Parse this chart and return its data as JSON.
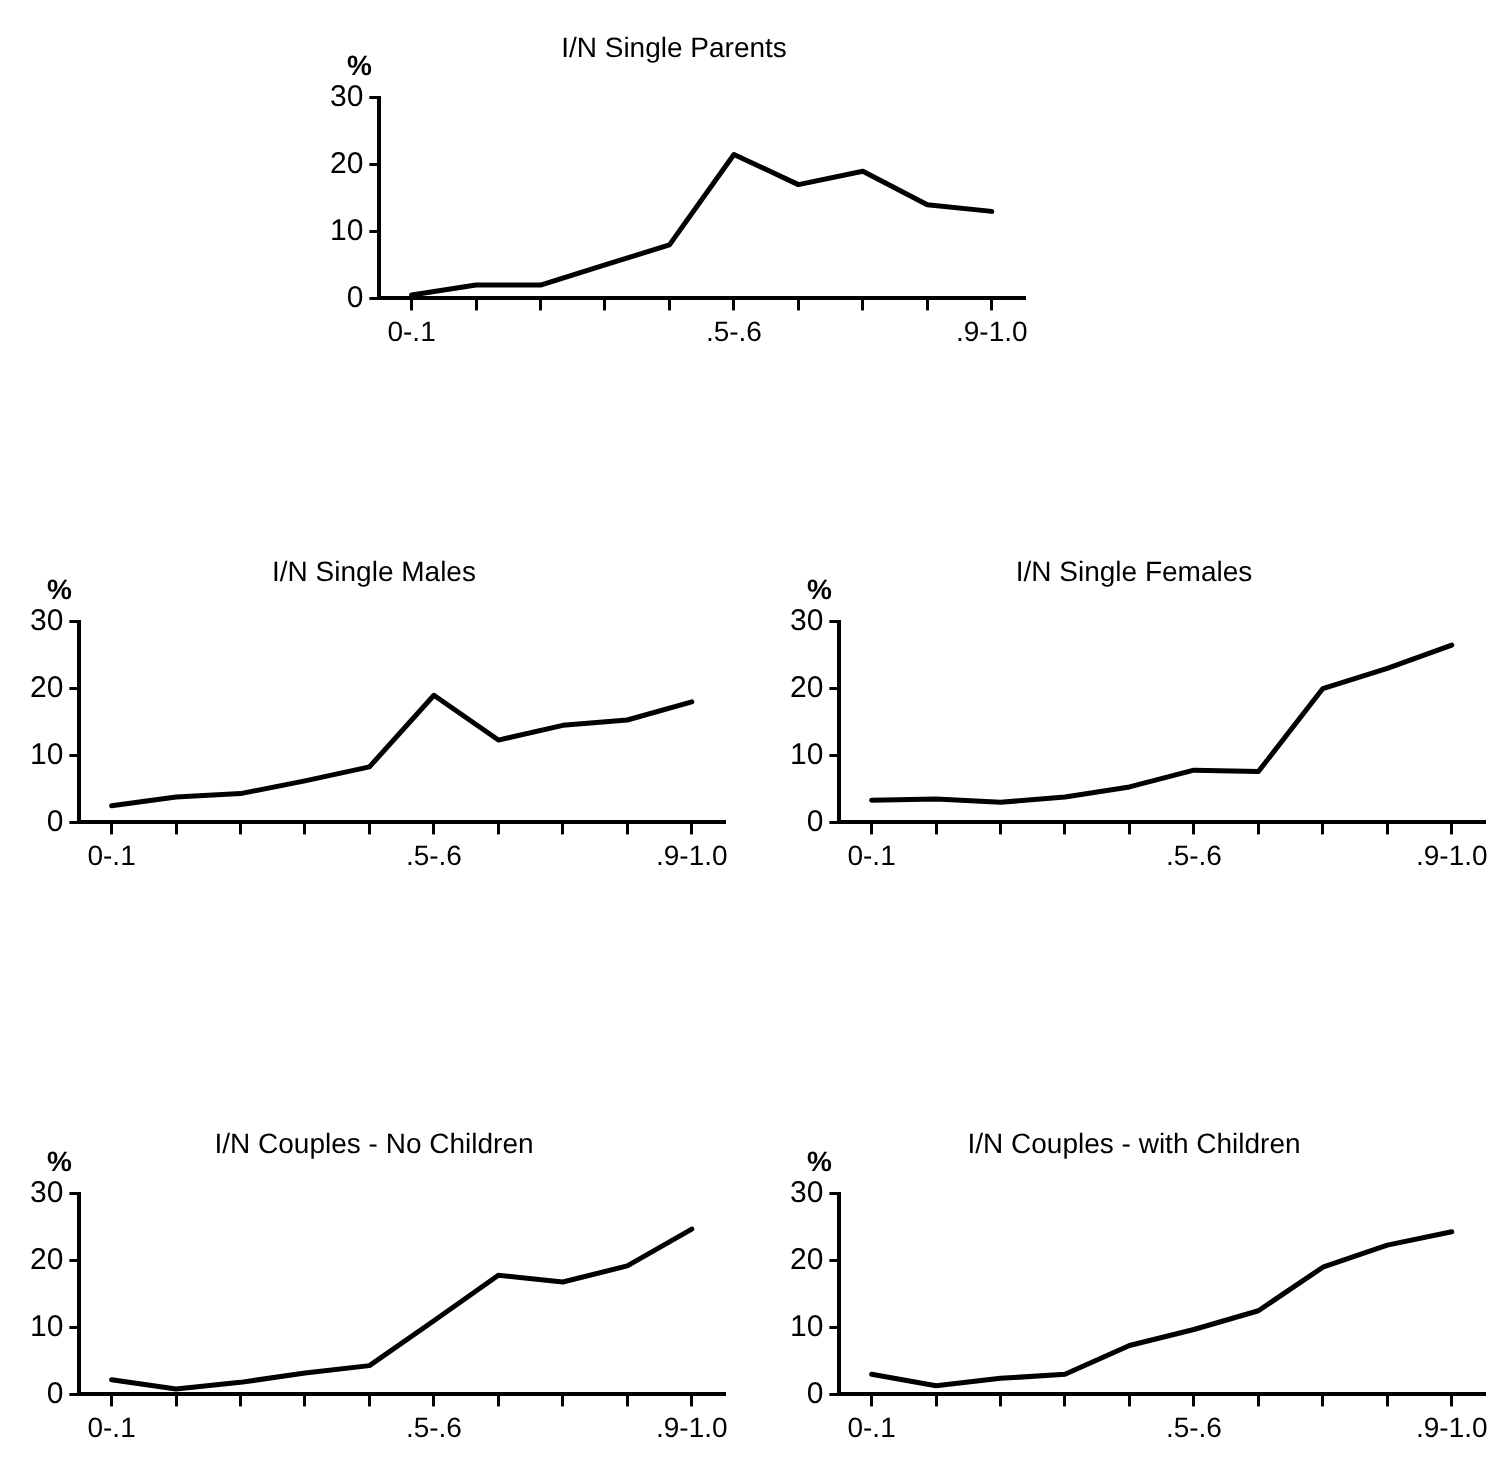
{
  "chart_data": [
    {
      "type": "line",
      "title": "I/N Single Parents",
      "ylabel": "%",
      "categories": [
        "0-.1",
        null,
        null,
        null,
        null,
        ".5-.6",
        null,
        null,
        null,
        ".9-1.0"
      ],
      "values": [
        0.5,
        2,
        2,
        5,
        8,
        21.5,
        17,
        19,
        14,
        13
      ],
      "color": "#000000",
      "ylim": [
        0,
        30
      ],
      "yticks": [
        0,
        10,
        20,
        30
      ],
      "grid": false,
      "legend": false,
      "marker": "none",
      "line_style": "solid"
    },
    {
      "type": "line",
      "title": "I/N Single Males",
      "ylabel": "%",
      "categories": [
        "0-.1",
        null,
        null,
        null,
        null,
        ".5-.6",
        null,
        null,
        null,
        ".9-1.0"
      ],
      "values": [
        2.5,
        3.8,
        4.3,
        6.2,
        8.3,
        19,
        12.3,
        14.5,
        15.3,
        18
      ],
      "color": "#000000",
      "ylim": [
        0,
        30
      ],
      "yticks": [
        0,
        10,
        20,
        30
      ],
      "grid": false,
      "legend": false,
      "marker": "none",
      "line_style": "solid"
    },
    {
      "type": "line",
      "title": "I/N Single Females",
      "ylabel": "%",
      "categories": [
        "0-.1",
        null,
        null,
        null,
        null,
        ".5-.6",
        null,
        null,
        null,
        ".9-1.0"
      ],
      "values": [
        3.3,
        3.5,
        3,
        3.8,
        5.3,
        7.8,
        7.6,
        20,
        23,
        26.5
      ],
      "color": "#000000",
      "ylim": [
        0,
        30
      ],
      "yticks": [
        0,
        10,
        20,
        30
      ],
      "grid": false,
      "legend": false,
      "marker": "none",
      "line_style": "solid"
    },
    {
      "type": "line",
      "title": "I/N Couples - No Children",
      "ylabel": "%",
      "categories": [
        "0-.1",
        null,
        null,
        null,
        null,
        ".5-.6",
        null,
        null,
        null,
        ".9-1.0"
      ],
      "values": [
        2.2,
        0.8,
        1.8,
        3.2,
        4.3,
        11,
        17.8,
        16.8,
        19.2,
        24.7
      ],
      "color": "#000000",
      "ylim": [
        0,
        30
      ],
      "yticks": [
        0,
        10,
        20,
        30
      ],
      "grid": false,
      "legend": false,
      "marker": "none",
      "line_style": "solid"
    },
    {
      "type": "line",
      "title": "I/N Couples - with Children",
      "ylabel": "%",
      "categories": [
        "0-.1",
        null,
        null,
        null,
        null,
        ".5-.6",
        null,
        null,
        null,
        ".9-1.0"
      ],
      "values": [
        3,
        1.3,
        2.4,
        3,
        7.3,
        9.7,
        12.5,
        19,
        22.3,
        24.3
      ],
      "color": "#000000",
      "ylim": [
        0,
        30
      ],
      "yticks": [
        0,
        10,
        20,
        30
      ],
      "grid": false,
      "legend": false,
      "marker": "none",
      "line_style": "solid"
    }
  ]
}
